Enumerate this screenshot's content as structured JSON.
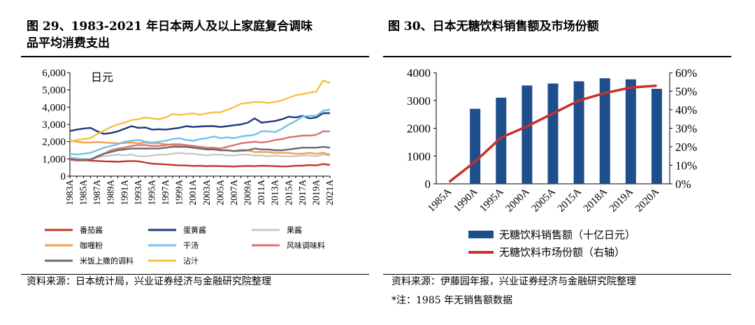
{
  "left_panel": {
    "title_line1": "图 29、1983-2021 年日本两人及以上家庭复合调味",
    "title_line2": "品平均消费支出",
    "source": "资料来源：日本统计局，兴业证券经济与金融研究院整理"
  },
  "right_panel": {
    "title": "图 30、日本无糖饮料销售额及市场份额",
    "source": "资料来源：伊藤园年报，兴业证券经济与金融研究院整理",
    "note": "*注：1985 年无销售额数据"
  },
  "chart_data": [
    {
      "type": "line",
      "title": "1983-2021 年日本两人及以上家庭复合调味品平均消费支出",
      "ylabel": "日元",
      "ylim": [
        0,
        6000
      ],
      "yticks": [
        "0",
        "1,000",
        "2,000",
        "3,000",
        "4,000",
        "5,000",
        "6,000"
      ],
      "x_tick_labels": [
        "1983A",
        "1985A",
        "1987A",
        "1989A",
        "1991A",
        "1993A",
        "1995A",
        "1997A",
        "1999A",
        "2001A",
        "2003A",
        "2005A",
        "2007A",
        "2009A",
        "2011A",
        "2013A",
        "2015A",
        "2017A",
        "2019A",
        "2021A"
      ],
      "x_start": 1983,
      "x_end": 2021,
      "series": [
        {
          "name": "番茄酱",
          "color": "#c0392b",
          "values": [
            1000,
            950,
            920,
            900,
            880,
            860,
            850,
            830,
            860,
            880,
            860,
            790,
            720,
            700,
            680,
            650,
            620,
            620,
            590,
            600,
            580,
            590,
            580,
            570,
            560,
            580,
            590,
            580,
            600,
            590,
            580,
            560,
            570,
            600,
            610,
            640,
            620,
            700,
            650
          ]
        },
        {
          "name": "蛋黄酱",
          "color": "#1f3a7a",
          "values": [
            2620,
            2700,
            2760,
            2800,
            2600,
            2450,
            2500,
            2600,
            2750,
            2900,
            2800,
            2820,
            2700,
            2720,
            2700,
            2750,
            2800,
            2900,
            2850,
            2880,
            2900,
            2900,
            2850,
            2900,
            2950,
            3000,
            3100,
            3350,
            3100,
            3150,
            3200,
            3300,
            3450,
            3400,
            3500,
            3350,
            3400,
            3650,
            3650
          ]
        },
        {
          "name": "果酱",
          "color": "#c8c8c8",
          "values": [
            1100,
            1050,
            1000,
            1000,
            1100,
            1150,
            1200,
            1250,
            1200,
            1250,
            1150,
            1150,
            1200,
            1250,
            1250,
            1300,
            1350,
            1300,
            1300,
            1250,
            1200,
            1250,
            1250,
            1200,
            1200,
            1250,
            1250,
            1200,
            1200,
            1150,
            1200,
            1150,
            1150,
            1150,
            1200,
            1200,
            1150,
            1250,
            1200
          ]
        },
        {
          "name": "咖喱粉",
          "color": "#f0a050",
          "values": [
            2050,
            2000,
            1950,
            1950,
            1980,
            1950,
            1930,
            1900,
            1920,
            1950,
            1900,
            1950,
            1900,
            1900,
            1850,
            1800,
            1750,
            1700,
            1650,
            1600,
            1600,
            1550,
            1500,
            1500,
            1450,
            1450,
            1500,
            1400,
            1400,
            1400,
            1350,
            1350,
            1350,
            1300,
            1300,
            1350,
            1300,
            1350,
            1250
          ]
        },
        {
          "name": "干汤",
          "color": "#74c2ea",
          "values": [
            1300,
            1250,
            1300,
            1350,
            1500,
            1650,
            1750,
            1850,
            2000,
            2050,
            2100,
            2000,
            1950,
            2000,
            2050,
            2150,
            2200,
            2100,
            2050,
            2150,
            2200,
            2300,
            2200,
            2250,
            2200,
            2300,
            2350,
            2400,
            2600,
            2600,
            2550,
            2750,
            3000,
            3200,
            3450,
            3500,
            3500,
            3800,
            3850
          ]
        },
        {
          "name": "风味调味料",
          "color": "#e07070",
          "values": [
            950,
            900,
            900,
            950,
            1100,
            1300,
            1500,
            1600,
            1650,
            1750,
            1800,
            1800,
            1750,
            1750,
            1800,
            1850,
            1850,
            1800,
            1750,
            1700,
            1650,
            1650,
            1600,
            1700,
            1800,
            1900,
            1950,
            2000,
            1950,
            2000,
            2100,
            2150,
            2250,
            2300,
            2350,
            2350,
            2400,
            2600,
            2600
          ]
        },
        {
          "name": "米饭上撒的调料",
          "color": "#6b6b6b",
          "values": [
            1000,
            950,
            950,
            950,
            1150,
            1300,
            1400,
            1500,
            1550,
            1600,
            1600,
            1600,
            1600,
            1600,
            1650,
            1700,
            1700,
            1700,
            1650,
            1600,
            1550,
            1550,
            1500,
            1500,
            1450,
            1500,
            1500,
            1600,
            1550,
            1550,
            1500,
            1500,
            1550,
            1600,
            1650,
            1650,
            1650,
            1700,
            1650
          ]
        },
        {
          "name": "沾汁",
          "color": "#f5c242",
          "values": [
            2000,
            2100,
            2150,
            2200,
            2450,
            2650,
            2850,
            3000,
            3100,
            3250,
            3300,
            3400,
            3350,
            3300,
            3400,
            3600,
            3550,
            3600,
            3650,
            3550,
            3650,
            3700,
            3700,
            3850,
            4000,
            4200,
            4250,
            4300,
            4300,
            4250,
            4300,
            4400,
            4550,
            4700,
            4750,
            4850,
            4900,
            5550,
            5400
          ]
        }
      ],
      "legend": [
        "番茄酱",
        "蛋黄酱",
        "果酱",
        "咖喱粉",
        "干汤",
        "风味调味料",
        "米饭上撒的调料",
        "沾汁"
      ]
    },
    {
      "type": "bar",
      "title": "日本无糖饮料销售额及市场份额",
      "categories": [
        "1985A",
        "1990A",
        "1995A",
        "2000A",
        "2005A",
        "2015A",
        "2018A",
        "2019A",
        "2020A"
      ],
      "series": [
        {
          "name": "无糖饮料销售额（十亿日元）",
          "axis": "left",
          "color": "#1f4e8c",
          "values": [
            null,
            2700,
            3100,
            3540,
            3610,
            3690,
            3800,
            3760,
            3420
          ]
        },
        {
          "name": "无糖饮料市场份额（右轴）",
          "axis": "right",
          "type": "line",
          "color": "#c8302b",
          "values": [
            1.0,
            12,
            25,
            31,
            38,
            45,
            49,
            52,
            53
          ]
        }
      ],
      "ylim_left": [
        0,
        4000
      ],
      "yticks_left": [
        "0",
        "1000",
        "2000",
        "3000",
        "4000"
      ],
      "ylim_right": [
        0,
        60
      ],
      "yticks_right": [
        "0%",
        "10%",
        "20%",
        "30%",
        "40%",
        "50%",
        "60%"
      ],
      "legend": [
        "无糖饮料销售额（十亿日元）",
        "无糖饮料市场份额（右轴）"
      ]
    }
  ]
}
